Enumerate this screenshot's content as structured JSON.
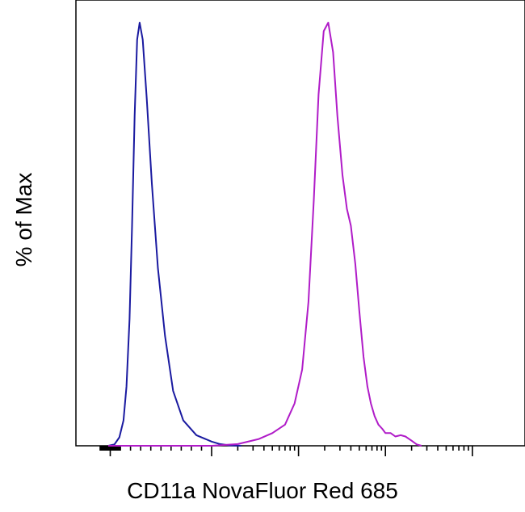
{
  "chart_data": {
    "type": "line",
    "title": "",
    "xlabel": "CD11a NovaFluor Red 685",
    "ylabel": "% of Max",
    "x_scale": "log",
    "x_tick_labels": [],
    "y_tick_labels": [],
    "xlim": [
      -100,
      1000000
    ],
    "ylim": [
      0,
      100
    ],
    "grid": false,
    "legend": "none",
    "series": [
      {
        "color": "#1a1aa0",
        "x": [
          -20,
          40,
          90,
          130,
          160,
          190,
          215,
          240,
          265,
          290,
          320,
          360,
          410,
          470,
          540,
          620,
          720,
          850,
          1000,
          1250,
          1600,
          2200
        ],
        "y": [
          0,
          0.3,
          2,
          6,
          14,
          30,
          52,
          78,
          96,
          100,
          96,
          82,
          62,
          42,
          26,
          13,
          6,
          2.5,
          1,
          0.4,
          0.1,
          0
        ]
      },
      {
        "color": "#b01cc8",
        "x": [
          -20,
          1000,
          2000,
          3500,
          5000,
          7000,
          9000,
          11000,
          13000,
          15000,
          17000,
          19500,
          22000,
          25000,
          28000,
          32000,
          36000,
          40000,
          45000,
          50000,
          56000,
          62000,
          68000,
          75000,
          83000,
          92000,
          100000,
          115000,
          130000,
          150000,
          170000,
          200000,
          230000,
          260000
        ],
        "y": [
          0,
          0,
          0.4,
          1.6,
          3,
          5,
          10,
          18,
          34,
          58,
          83,
          98,
          100,
          93,
          78,
          64,
          56,
          52,
          43,
          32,
          21,
          14,
          10,
          7,
          5,
          4,
          3,
          3,
          2.2,
          2.5,
          2.2,
          1.2,
          0.3,
          0
        ]
      }
    ]
  }
}
